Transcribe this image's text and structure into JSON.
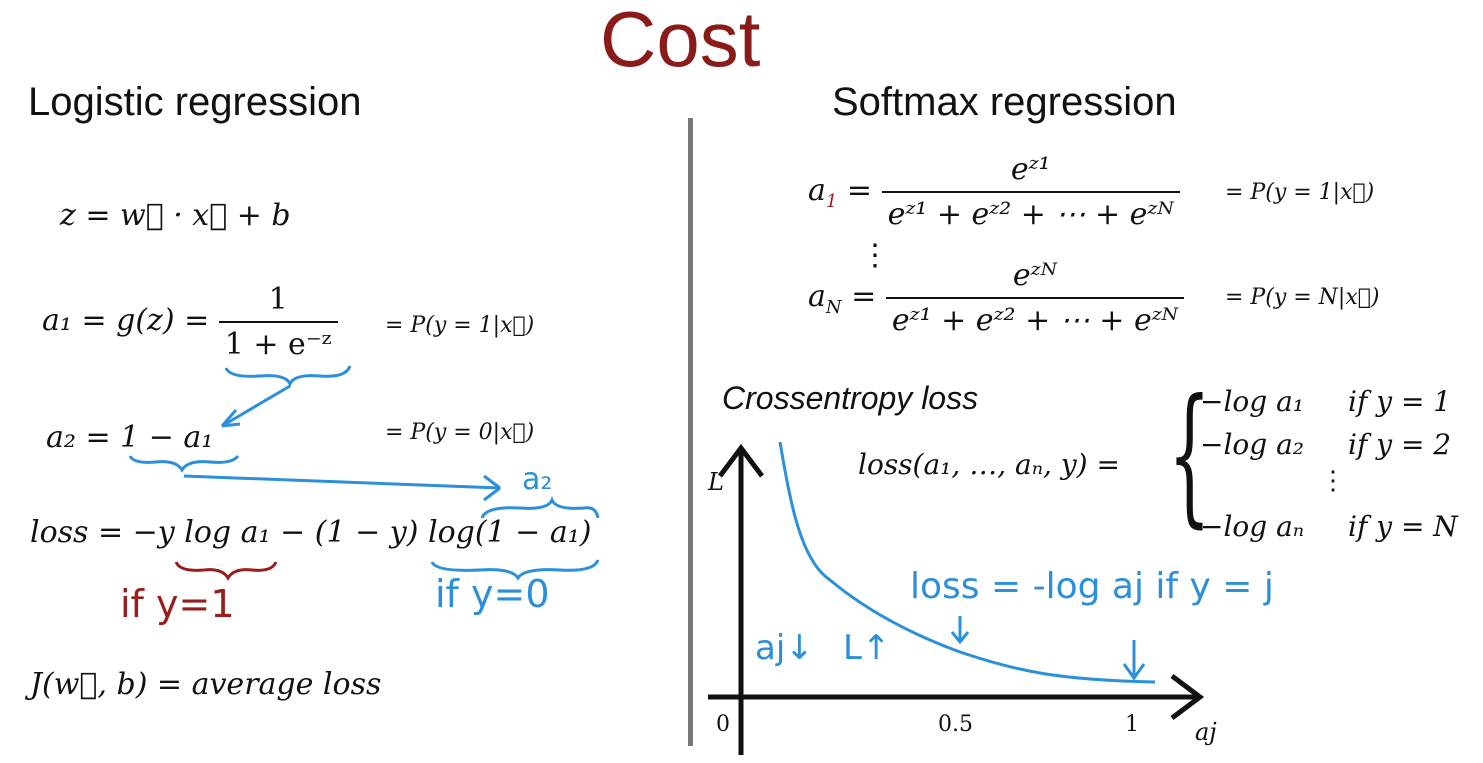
{
  "title": "Cost",
  "left": {
    "heading": "Logistic regression",
    "z_eq": "z = w⃗ · x⃗ + b",
    "a1_lhs": "a₁ = g(z) =",
    "a1_num": "1",
    "a1_den": "1 + e⁻ᶻ",
    "a1_prob": "= P(y = 1|x⃗)",
    "a2_eq": "a₂ = 1 − a₁",
    "a2_prob": "= P(y = 0|x⃗)",
    "loss_eq": "loss = −y log a₁ − (1 − y) log(1 − a₁)",
    "hand_a2": "a₂",
    "hand_if1": "if y=1",
    "hand_if0": "if y=0",
    "cost_eq": "J(w⃗, b) = average loss"
  },
  "right": {
    "heading": "Softmax regression",
    "a1_lhs_a": "a",
    "a1_lhs_sub": "1",
    "a1_num": "eᶻ¹",
    "aN_lhs_a": "a",
    "aN_lhs_sub": "N",
    "aN_num": "eᶻᴺ",
    "den_text": "eᶻ¹ + eᶻ² + ⋯ + eᶻᴺ",
    "vdots": "⋮",
    "a1_prob": "= P(y = 1|x⃗)",
    "aN_prob": "= P(y = N|x⃗)",
    "crossentropy_label": "Crossentropy loss",
    "loss_lhs": "loss(a₁, …, aₙ, y) =",
    "cases": [
      {
        "expr": "−log a₁",
        "cond": "if y = 1"
      },
      {
        "expr": "−log a₂",
        "cond": "if y = 2"
      },
      {
        "expr": "⋮",
        "cond": ""
      },
      {
        "expr": "−log aₙ",
        "cond": "if y = N"
      }
    ],
    "hand_loss": "loss = -log aj  if y = j",
    "hand_aj_down": "aj↓",
    "hand_L_up": "L↑"
  },
  "graph": {
    "y_axis_label": "L",
    "x_axis_label": "aj",
    "ticks": [
      "0",
      "0.5",
      "1"
    ]
  },
  "colors": {
    "title": "#8b1a1a",
    "hand_blue": "#2b8fd9",
    "hand_red": "#9b1c1c",
    "divider": "#777777"
  }
}
